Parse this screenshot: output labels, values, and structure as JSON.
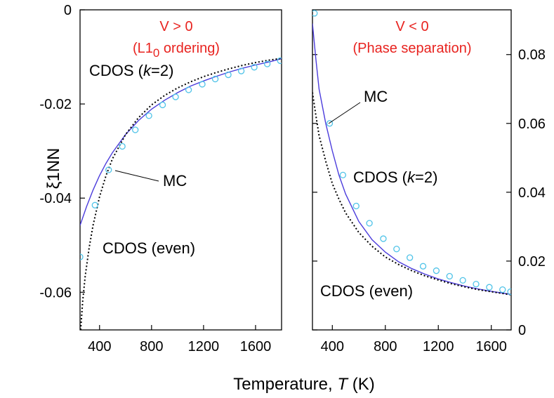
{
  "chart_data": [
    {
      "type": "line",
      "panel": "left",
      "title": [
        "V > 0",
        "(L1",
        "0",
        " ordering)"
      ],
      "xlabel": "Temperature, T (K)",
      "ylabel": "ξ1NN",
      "xlim": [
        250,
        1800
      ],
      "ylim": [
        -0.068,
        0
      ],
      "xticks": [
        400,
        800,
        1200,
        1600
      ],
      "yticks": [
        0,
        -0.02,
        -0.04,
        -0.06
      ],
      "ytick_labels": [
        "0",
        "-0.02",
        "-0.04",
        "-0.06"
      ],
      "series": [
        {
          "name": "CDOS (k=2)",
          "style": "solid",
          "color": "#4b3cdc",
          "x": [
            250,
            300,
            350,
            400,
            450,
            500,
            600,
            700,
            800,
            900,
            1000,
            1100,
            1200,
            1300,
            1400,
            1500,
            1600,
            1700,
            1800
          ],
          "y": [
            -0.0458,
            -0.0418,
            -0.0383,
            -0.0352,
            -0.0326,
            -0.0303,
            -0.0265,
            -0.0235,
            -0.0211,
            -0.0192,
            -0.0176,
            -0.0162,
            -0.0151,
            -0.0141,
            -0.0132,
            -0.0124,
            -0.0117,
            -0.0111,
            -0.0104
          ]
        },
        {
          "name": "CDOS (even)",
          "style": "dotted",
          "color": "#000000",
          "x": [
            255,
            270,
            290,
            320,
            350,
            400,
            450,
            500,
            600,
            700,
            800,
            900,
            1000,
            1100,
            1200,
            1300,
            1400,
            1500,
            1600,
            1700,
            1800
          ],
          "y": [
            -0.068,
            -0.062,
            -0.0565,
            -0.0505,
            -0.0458,
            -0.0397,
            -0.0352,
            -0.0316,
            -0.0265,
            -0.0229,
            -0.0202,
            -0.0182,
            -0.0166,
            -0.0153,
            -0.0142,
            -0.0133,
            -0.0125,
            -0.0118,
            -0.0112,
            -0.0107,
            -0.0103
          ]
        },
        {
          "name": "MC",
          "style": "circle",
          "color": "#4fc3e8",
          "x": [
            250,
            365,
            470,
            575,
            675,
            780,
            885,
            985,
            1085,
            1190,
            1290,
            1390,
            1490,
            1590,
            1690,
            1790
          ],
          "y": [
            -0.0525,
            -0.0415,
            -0.034,
            -0.029,
            -0.0255,
            -0.0225,
            -0.0202,
            -0.0185,
            -0.017,
            -0.0158,
            -0.0147,
            -0.0138,
            -0.013,
            -0.0122,
            -0.0115,
            -0.0108
          ]
        }
      ],
      "annotations": [
        "CDOS (",
        "k",
        "=2)",
        "MC",
        "CDOS (even)"
      ]
    },
    {
      "type": "line",
      "panel": "right",
      "title": [
        "V < 0",
        "(Phase separation)"
      ],
      "xlabel": "Temperature, T (K)",
      "ylabel": "",
      "xlim": [
        250,
        1750
      ],
      "ylim": [
        0,
        0.093
      ],
      "xticks": [
        400,
        800,
        1200,
        1600
      ],
      "yticks": [
        0,
        0.02,
        0.04,
        0.06,
        0.08
      ],
      "ytick_labels": [
        "0",
        "0.02",
        "0.04",
        "0.06",
        "0.08"
      ],
      "series": [
        {
          "name": "CDOS (k=2)",
          "style": "solid",
          "color": "#4b3cdc",
          "x": [
            250,
            275,
            300,
            350,
            400,
            450,
            500,
            600,
            700,
            800,
            900,
            1000,
            1100,
            1200,
            1300,
            1400,
            1500,
            1600,
            1700,
            1750
          ],
          "y": [
            0.089,
            0.079,
            0.07,
            0.06,
            0.052,
            0.045,
            0.0395,
            0.0315,
            0.0262,
            0.0226,
            0.0198,
            0.0178,
            0.0162,
            0.0148,
            0.0137,
            0.0127,
            0.0119,
            0.0112,
            0.0106,
            0.0103
          ]
        },
        {
          "name": "CDOS (even)",
          "style": "dotted",
          "color": "#000000",
          "x": [
            250,
            275,
            300,
            350,
            400,
            450,
            500,
            600,
            700,
            800,
            900,
            1000,
            1100,
            1200,
            1300,
            1400,
            1500,
            1600,
            1700,
            1750
          ],
          "y": [
            0.069,
            0.0625,
            0.0565,
            0.049,
            0.0425,
            0.038,
            0.034,
            0.0283,
            0.0243,
            0.0212,
            0.019,
            0.0172,
            0.0157,
            0.0145,
            0.0134,
            0.0125,
            0.0117,
            0.0111,
            0.0105,
            0.0102
          ]
        },
        {
          "name": "MC",
          "style": "circle",
          "color": "#4fc3e8",
          "x": [
            265,
            380,
            480,
            580,
            680,
            785,
            885,
            985,
            1085,
            1185,
            1285,
            1385,
            1485,
            1585,
            1685,
            1745
          ],
          "y": [
            0.092,
            0.06,
            0.045,
            0.036,
            0.031,
            0.0265,
            0.0235,
            0.021,
            0.0185,
            0.0172,
            0.0156,
            0.0144,
            0.0133,
            0.0124,
            0.0117,
            0.0111
          ]
        }
      ],
      "annotations": [
        "MC",
        "CDOS (",
        "k",
        "=2)",
        "CDOS (even)"
      ]
    }
  ]
}
